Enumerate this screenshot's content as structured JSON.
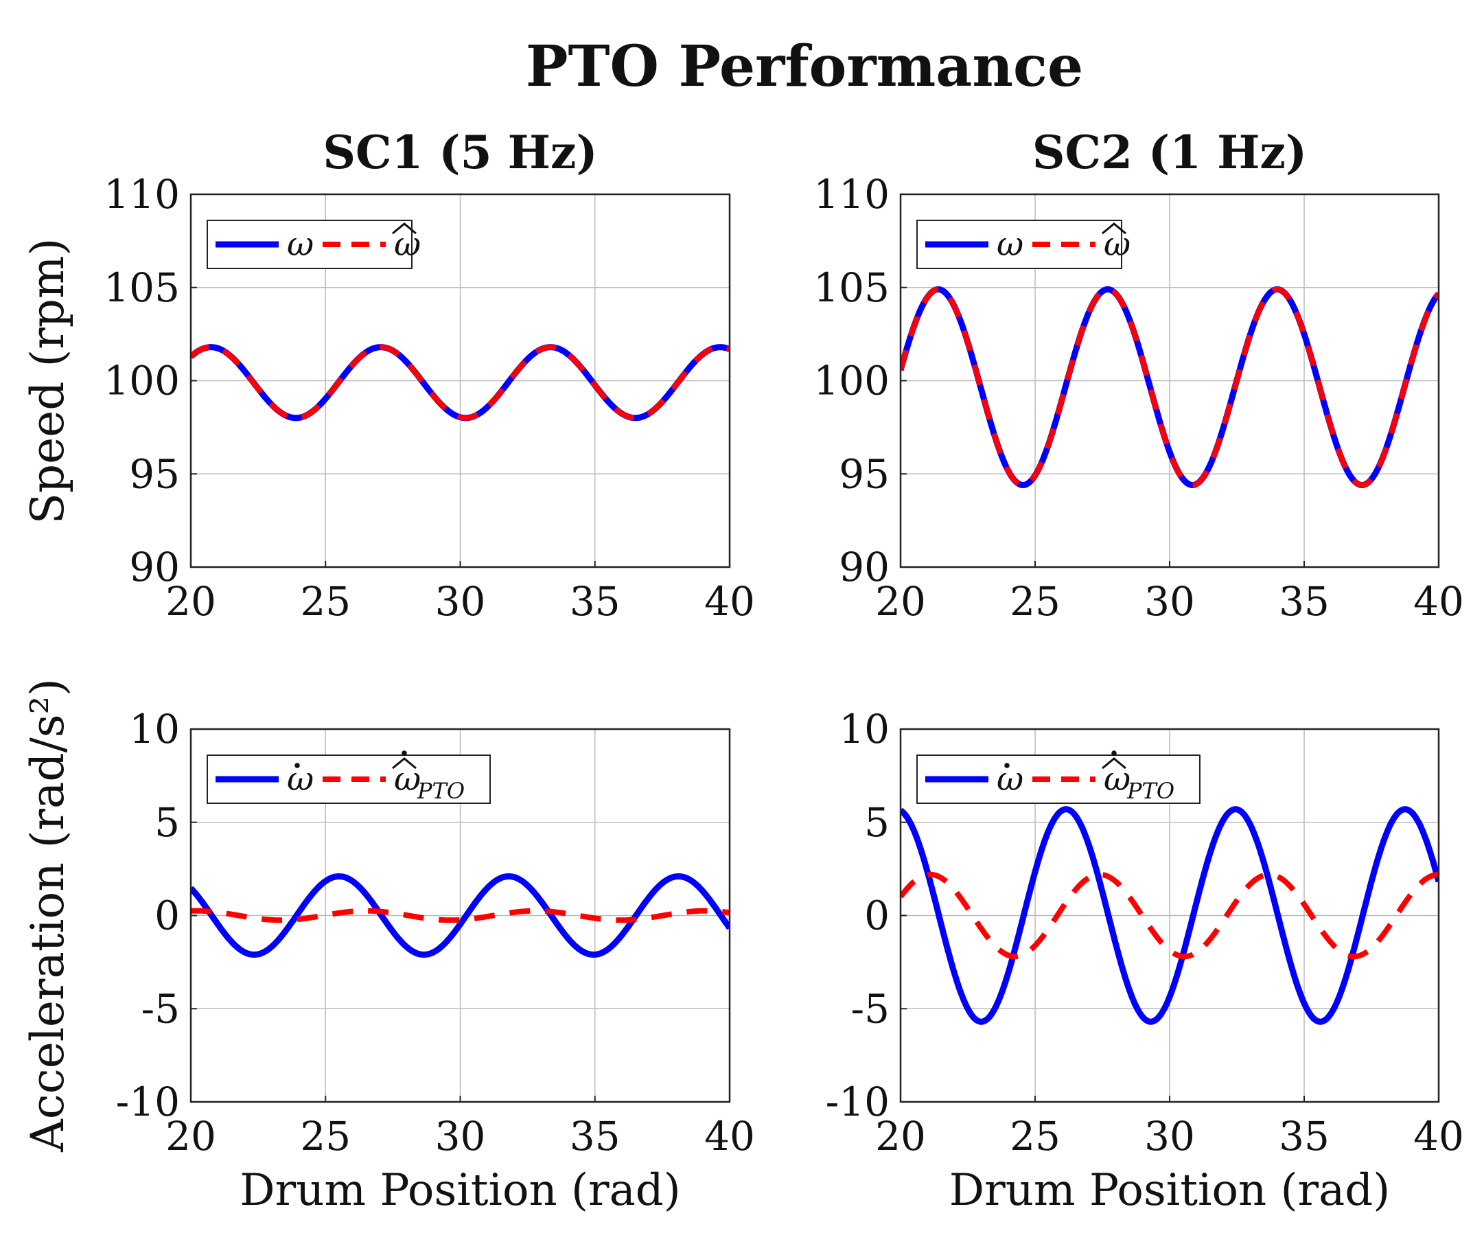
{
  "figure": {
    "title": "PTO Performance",
    "row_ylabels": [
      "Speed (rpm)",
      "Acceleration (rad/s²)"
    ],
    "col_titles": [
      "SC1 (5 Hz)",
      "SC2 (1 Hz)"
    ],
    "colors": {
      "measured": "#0000ff",
      "estimated": "#ff0000",
      "grid": "#bbbbbb",
      "axis": "#222222"
    }
  },
  "chart_data": [
    {
      "id": "sc1-speed",
      "type": "line",
      "title": "SC1 (5 Hz)",
      "xlabel": "",
      "ylabel": "Speed (rpm)",
      "xlim": [
        20,
        40
      ],
      "ylim": [
        90,
        110
      ],
      "xticks": [
        20,
        25,
        30,
        35,
        40
      ],
      "yticks": [
        90,
        95,
        100,
        105,
        110
      ],
      "grid": true,
      "legend_position": "top-left",
      "series": [
        {
          "name": "ω",
          "label_main": "ω",
          "label_sub": "",
          "dot": false,
          "style": "solid",
          "color": "#0000ff",
          "model": {
            "mean": 99.9,
            "amp": 1.9,
            "period": 6.3,
            "x_peak": 20.75
          }
        },
        {
          "name": "ω̂",
          "label_main": "ω",
          "label_sub": "",
          "hat": true,
          "dot": false,
          "style": "dashed",
          "color": "#ff0000",
          "model": {
            "mean": 99.9,
            "amp": 1.9,
            "period": 6.3,
            "x_peak": 20.75
          }
        }
      ]
    },
    {
      "id": "sc2-speed",
      "type": "line",
      "title": "SC2 (1 Hz)",
      "xlabel": "",
      "ylabel": "",
      "xlim": [
        20,
        40
      ],
      "ylim": [
        90,
        110
      ],
      "xticks": [
        20,
        25,
        30,
        35,
        40
      ],
      "yticks": [
        90,
        95,
        100,
        105,
        110
      ],
      "grid": true,
      "legend_position": "top-left",
      "series": [
        {
          "name": "ω",
          "label_main": "ω",
          "label_sub": "",
          "dot": false,
          "style": "solid",
          "color": "#0000ff",
          "model": {
            "mean": 99.65,
            "amp": 5.25,
            "period": 6.3,
            "x_peak": 21.4
          }
        },
        {
          "name": "ω̂",
          "label_main": "ω",
          "label_sub": "",
          "hat": true,
          "dot": false,
          "style": "dashed",
          "color": "#ff0000",
          "model": {
            "mean": 99.65,
            "amp": 5.25,
            "period": 6.3,
            "x_peak": 21.4
          }
        }
      ]
    },
    {
      "id": "sc1-accel",
      "type": "line",
      "title": "",
      "xlabel": "Drum Position (rad)",
      "ylabel": "Acceleration (rad/s²)",
      "xlim": [
        20,
        40
      ],
      "ylim": [
        -10,
        10
      ],
      "xticks": [
        20,
        25,
        30,
        35,
        40
      ],
      "yticks": [
        -10,
        -5,
        0,
        5,
        10
      ],
      "grid": true,
      "legend_position": "top-left",
      "series": [
        {
          "name": "ω̇",
          "label_main": "ω",
          "label_sub": "",
          "dot": true,
          "style": "solid",
          "color": "#0000ff",
          "model": {
            "mean": 0.0,
            "amp": 2.1,
            "period": 6.3,
            "x_peak": 25.5
          }
        },
        {
          "name": "ω̂̇ PTO",
          "label_main": "ω",
          "label_sub": "PTO",
          "hat": true,
          "dot": true,
          "style": "dashed",
          "color": "#ff0000",
          "model": {
            "mean": 0.0,
            "amp": 0.25,
            "period": 6.3,
            "x_peak": 20.2
          }
        }
      ]
    },
    {
      "id": "sc2-accel",
      "type": "line",
      "title": "",
      "xlabel": "Drum Position (rad)",
      "ylabel": "",
      "xlim": [
        20,
        40
      ],
      "ylim": [
        -10,
        10
      ],
      "xticks": [
        20,
        25,
        30,
        35,
        40
      ],
      "yticks": [
        -10,
        -5,
        0,
        5,
        10
      ],
      "grid": true,
      "legend_position": "top-left",
      "series": [
        {
          "name": "ω̇",
          "label_main": "ω",
          "label_sub": "",
          "dot": true,
          "style": "solid",
          "color": "#0000ff",
          "model": {
            "mean": 0.0,
            "amp": 5.7,
            "period": 6.3,
            "x_peak": 26.15
          }
        },
        {
          "name": "ω̂̇ PTO",
          "label_main": "ω",
          "label_sub": "PTO",
          "hat": true,
          "dot": true,
          "style": "dashed",
          "color": "#ff0000",
          "model": {
            "mean": 0.0,
            "amp": 2.2,
            "period": 6.3,
            "x_peak": 21.1
          }
        }
      ]
    }
  ]
}
